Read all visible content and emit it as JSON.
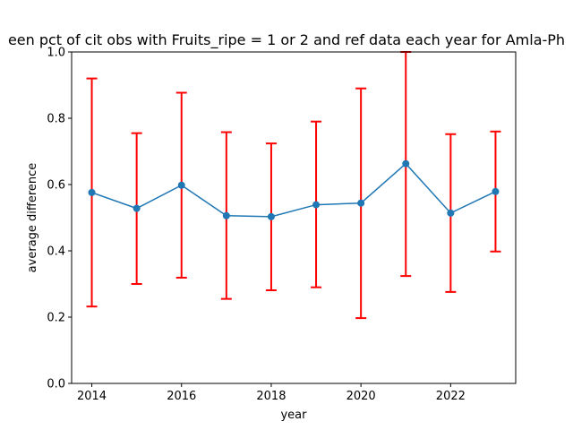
{
  "chart_data": {
    "type": "line",
    "title": "een pct of cit obs with Fruits_ripe = 1 or 2 and ref data each year for Amla-Ph",
    "xlabel": "year",
    "ylabel": "average difference",
    "x": [
      2014,
      2015,
      2016,
      2017,
      2018,
      2019,
      2020,
      2021,
      2022,
      2023
    ],
    "series": [
      {
        "values": [
          0.576,
          0.528,
          0.598,
          0.506,
          0.503,
          0.539,
          0.544,
          0.663,
          0.514,
          0.579
        ],
        "error_lower": [
          0.232,
          0.3,
          0.319,
          0.255,
          0.281,
          0.29,
          0.197,
          0.324,
          0.276,
          0.398
        ],
        "error_upper": [
          0.92,
          0.755,
          0.877,
          0.758,
          0.724,
          0.79,
          0.89,
          1.0,
          0.752,
          0.76
        ],
        "color": "#1f77b4",
        "error_color": "#ff0000"
      }
    ],
    "xticks": [
      2014,
      2016,
      2018,
      2020,
      2022
    ],
    "xtick_labels": [
      "2014",
      "2016",
      "2018",
      "2020",
      "2022"
    ],
    "yticks": [
      0.0,
      0.2,
      0.4,
      0.6,
      0.8,
      1.0
    ],
    "ytick_labels": [
      "0.0",
      "0.2",
      "0.4",
      "0.6",
      "0.8",
      "1.0"
    ],
    "xlim": [
      2013.55,
      2023.45
    ],
    "ylim": [
      0.0,
      1.0
    ],
    "grid": false,
    "legend": "none"
  }
}
